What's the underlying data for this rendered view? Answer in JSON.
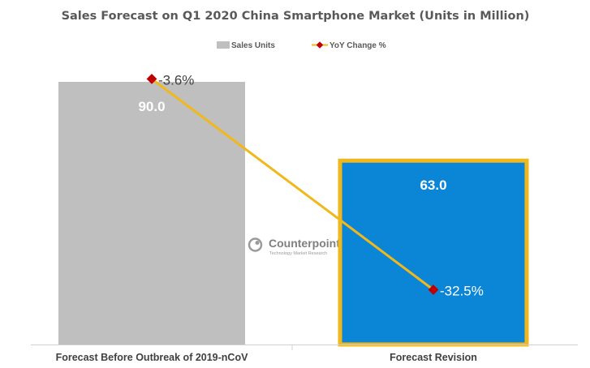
{
  "chart_data": {
    "type": "bar",
    "title": "Sales Forecast on Q1 2020 China Smartphone Market (Units in Million)",
    "categories": [
      "Forecast Before Outbreak of 2019-nCoV",
      "Forecast Revision"
    ],
    "series": [
      {
        "name": "Sales Units",
        "type": "bar",
        "values": [
          90.0,
          63.0
        ],
        "value_labels": [
          "90.0",
          "63.0"
        ],
        "colors": [
          "#bfbfbf",
          "#0b86d6"
        ]
      },
      {
        "name": "YoY Change %",
        "type": "line",
        "values": [
          -3.6,
          -32.5
        ],
        "value_labels": [
          "-3.6%",
          "-32.5%"
        ],
        "line_color": "#f0b81c",
        "marker_color": "#c00000"
      }
    ],
    "ylim": [
      0,
      100
    ],
    "y2lim": [
      -40,
      0
    ],
    "legend": {
      "position": "top-center",
      "entries": [
        {
          "label": "Sales Units",
          "color": "#bfbfbf"
        },
        {
          "label": "YoY Change %",
          "color": "#f0b81c"
        }
      ]
    },
    "highlight": {
      "category_index": 1,
      "border_color": "#f0b81c"
    },
    "grid": false,
    "watermark": {
      "name": "Counterpoint",
      "tagline": "Technology Market Research"
    }
  }
}
